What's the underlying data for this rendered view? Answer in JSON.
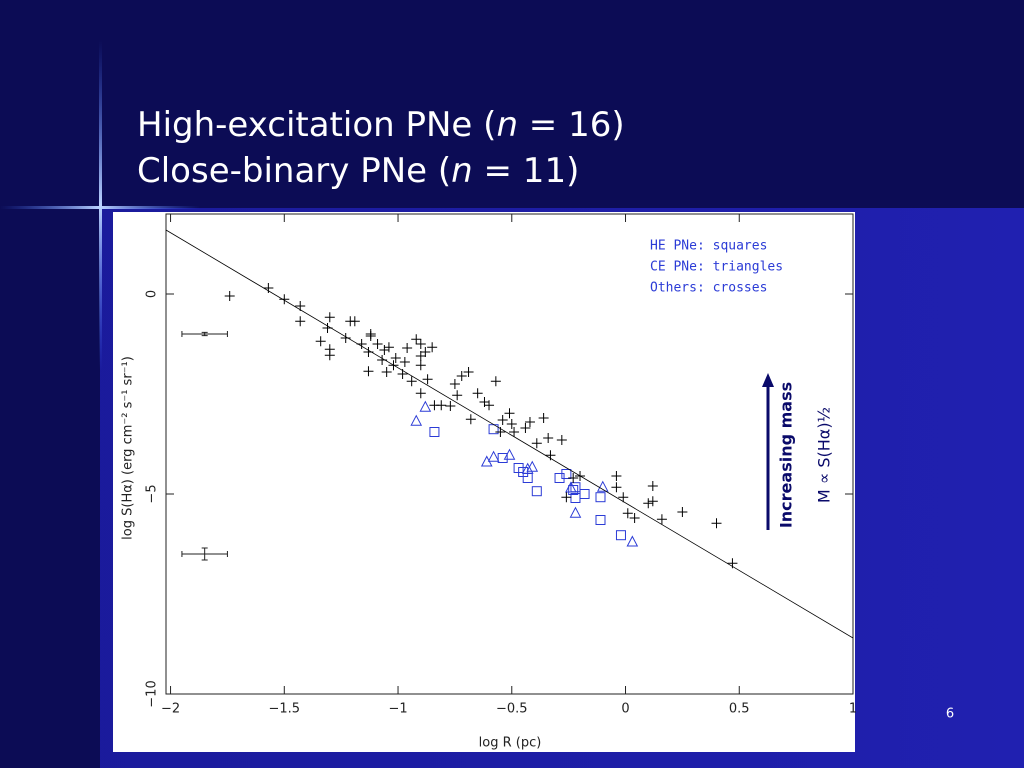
{
  "slide": {
    "title": [
      [
        "High-excitation PNe (",
        "n",
        " = 16)"
      ],
      [
        "Close-binary PNe (",
        "n",
        " = 11)"
      ]
    ],
    "page_number": "6"
  },
  "chart_data": {
    "type": "scatter",
    "xlabel": "log R (pc)",
    "ylabel": "log S(Hα) (erg cm⁻² s⁻¹ sr⁻¹)",
    "xlim": [
      -2.02,
      1
    ],
    "ylim": [
      -10,
      2
    ],
    "xticks": [
      {
        "value": -2,
        "label": "−2"
      },
      {
        "value": -1.5,
        "label": "−1.5"
      },
      {
        "value": -1,
        "label": "−1"
      },
      {
        "value": -0.5,
        "label": "−0.5"
      },
      0,
      0.5,
      1
    ],
    "yticks": [
      {
        "value": -10,
        "label": "−10"
      },
      {
        "value": -5,
        "label": "−5"
      },
      0
    ],
    "series": [
      {
        "name": "HE PNe: squares",
        "color": "#2b3bd6",
        "marker": "square",
        "x": [
          -0.58,
          -0.54,
          -0.84,
          -0.47,
          -0.43,
          -0.45,
          -0.39,
          -0.29,
          -0.26,
          -0.23,
          -0.22,
          -0.18,
          -0.11,
          -0.11,
          -0.02,
          -0.22
        ],
        "y": [
          -3.38,
          -4.1,
          -3.45,
          -4.35,
          -4.6,
          -4.45,
          -4.93,
          -4.6,
          -4.5,
          -4.9,
          -5.1,
          -5.0,
          -5.08,
          -5.65,
          -6.03,
          -4.83
        ]
      },
      {
        "name": "CE PNe: triangles",
        "color": "#2b3bd6",
        "marker": "triangle",
        "x": [
          -0.92,
          -0.88,
          -0.61,
          -0.58,
          -0.51,
          -0.41,
          -0.43,
          -0.24,
          -0.22,
          -0.1,
          0.03
        ],
        "y": [
          -3.18,
          -2.83,
          -4.2,
          -4.08,
          -4.03,
          -4.33,
          -4.38,
          -4.85,
          -5.48,
          -4.83,
          -6.2
        ]
      },
      {
        "name": "Others: crosses",
        "color": "#000000",
        "marker": "cross",
        "x": [
          -1.74,
          -1.57,
          -1.5,
          -1.43,
          -1.43,
          -1.3,
          -1.31,
          -1.34,
          -1.3,
          -1.3,
          -1.21,
          -1.19,
          -1.23,
          -1.12,
          -1.12,
          -1.16,
          -1.13,
          -1.09,
          -1.06,
          -1.07,
          -1.13,
          -1.05,
          -1.04,
          -1.01,
          -1.02,
          -0.98,
          -0.97,
          -0.96,
          -0.92,
          -0.9,
          -0.9,
          -0.9,
          -0.85,
          -0.88,
          -0.94,
          -0.9,
          -0.87,
          -0.84,
          -0.81,
          -0.77,
          -0.75,
          -0.74,
          -0.72,
          -0.69,
          -0.68,
          -0.65,
          -0.62,
          -0.6,
          -0.57,
          -0.54,
          -0.55,
          -0.51,
          -0.5,
          -0.49,
          -0.44,
          -0.42,
          -0.36,
          -0.39,
          -0.34,
          -0.33,
          -0.28,
          -0.26,
          -0.23,
          -0.2,
          -0.04,
          -0.04,
          -0.01,
          0.01,
          0.04,
          0.12,
          0.1,
          0.12,
          0.16,
          0.25,
          0.4,
          0.47
        ],
        "y": [
          -0.05,
          0.15,
          -0.13,
          -0.3,
          -0.68,
          -0.58,
          -0.85,
          -1.18,
          -1.38,
          -1.53,
          -0.68,
          -0.68,
          -1.1,
          -1.05,
          -1.0,
          -1.25,
          -1.45,
          -1.25,
          -1.4,
          -1.65,
          -1.93,
          -1.95,
          -1.33,
          -1.6,
          -1.78,
          -2.0,
          -1.7,
          -1.35,
          -1.13,
          -1.25,
          -1.55,
          -1.78,
          -1.33,
          -1.45,
          -2.18,
          -2.48,
          -2.13,
          -2.78,
          -2.78,
          -2.8,
          -2.25,
          -2.53,
          -2.05,
          -1.95,
          -3.13,
          -2.48,
          -2.7,
          -2.78,
          -2.18,
          -3.15,
          -3.45,
          -2.98,
          -3.25,
          -3.45,
          -3.35,
          -3.2,
          -3.1,
          -3.73,
          -3.6,
          -4.03,
          -3.65,
          -5.08,
          -4.6,
          -4.55,
          -4.55,
          -4.83,
          -5.08,
          -5.48,
          -5.6,
          -4.8,
          -5.23,
          -5.18,
          -5.63,
          -5.45,
          -5.73,
          -6.73
        ]
      },
      {
        "type": "line",
        "color": "#000000",
        "x": [
          -2.02,
          1
        ],
        "y": [
          1.6,
          -8.6
        ]
      }
    ],
    "error_bars": [
      {
        "x": -1.85,
        "y": -1.0,
        "xerr": 0.1,
        "yerr": 0.04
      },
      {
        "x": -1.85,
        "y": -6.5,
        "xerr": 0.1,
        "yerr": 0.15
      }
    ],
    "annotations": [
      "Increasing mass",
      "M ∝ S(Hα)½"
    ]
  }
}
